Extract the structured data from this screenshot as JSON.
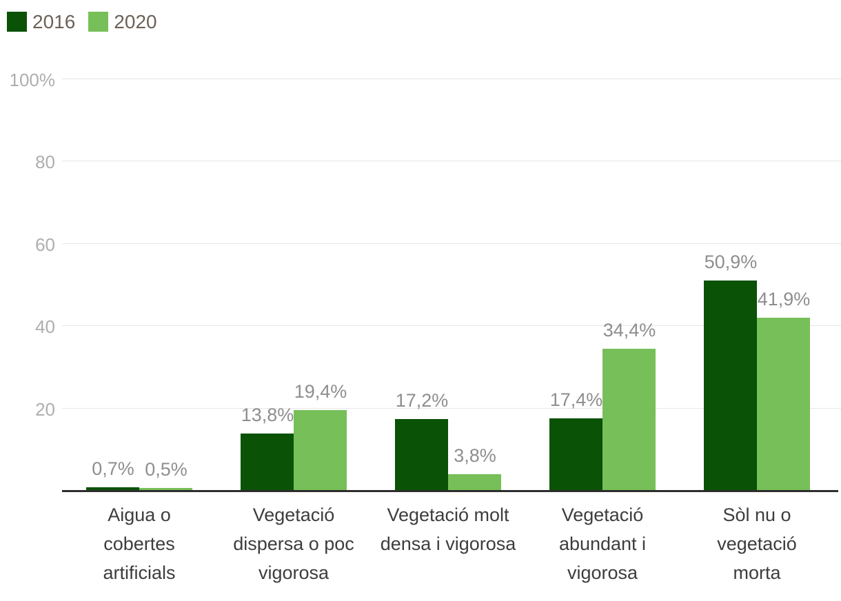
{
  "chart_data": {
    "type": "bar",
    "title": "",
    "xlabel": "",
    "ylabel": "",
    "grid": true,
    "legend_position": "top-left",
    "categories": [
      "Aigua o cobertes artificials",
      "Vegetació dispersa o poc vigorosa",
      "Vegetació molt densa i vigorosa",
      "Vegetació abundant i vigorosa",
      "Sòl nu o vegetació morta"
    ],
    "category_lines": [
      [
        "Aigua o",
        "cobertes",
        "artificials"
      ],
      [
        "Vegetació",
        "dispersa o poc",
        "vigorosa"
      ],
      [
        "Vegetació molt",
        "densa i vigorosa"
      ],
      [
        "Vegetació",
        "abundant i",
        "vigorosa"
      ],
      [
        "Sòl nu o",
        "vegetació",
        "morta"
      ]
    ],
    "series": [
      {
        "name": "2016",
        "color": "#0a5205",
        "values": [
          0.7,
          13.8,
          17.2,
          17.4,
          50.9
        ],
        "labels": [
          "0,7%",
          "13,8%",
          "17,2%",
          "17,4%",
          "50,9%"
        ]
      },
      {
        "name": "2020",
        "color": "#77bf58",
        "values": [
          0.5,
          19.4,
          3.8,
          34.4,
          41.9
        ],
        "labels": [
          "0,5%",
          "19,4%",
          "3,8%",
          "34,4%",
          "41,9%"
        ]
      }
    ],
    "y_axis": {
      "ylim": [
        0,
        100
      ],
      "ticks": [
        {
          "value": 100,
          "label": "100%"
        },
        {
          "value": 80,
          "label": "80"
        },
        {
          "value": 60,
          "label": "60"
        },
        {
          "value": 40,
          "label": "40"
        },
        {
          "value": 20,
          "label": "20"
        }
      ]
    },
    "colors": {
      "grid": "#e6e6e6",
      "axis_line": "#2d2d2d",
      "tick_label": "#aeaeae",
      "data_label": "#8e8e8e",
      "category_label": "#3d3d3d",
      "legend_label": "#6d6156"
    }
  }
}
